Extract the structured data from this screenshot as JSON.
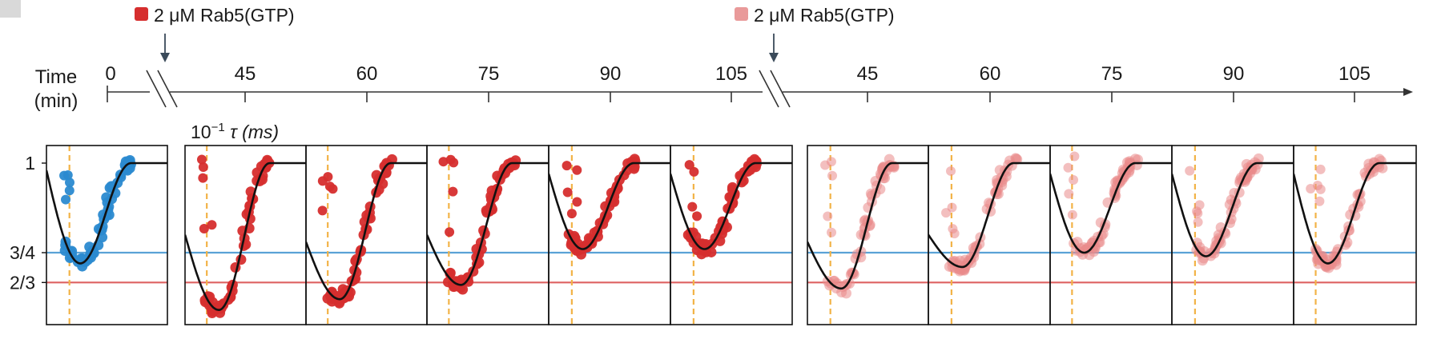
{
  "annotations": {
    "left": {
      "text": "2 μM Rab5(GTP)",
      "color": "#d62e2e"
    },
    "right": {
      "text": "2 μM Rab5(GTP)",
      "color": "#e99a9a"
    }
  },
  "timeline": {
    "label_line1": "Time",
    "label_line2": "(min)",
    "ticks": [
      "0",
      "45",
      "60",
      "75",
      "90",
      "105",
      "45",
      "60",
      "75",
      "90",
      "105"
    ]
  },
  "panel_axis_label": "10",
  "panel_axis_label_sup": "−1",
  "panel_axis_label_rest": "τ (ms)",
  "y_ticks": [
    "1",
    "3/4",
    "2/3"
  ],
  "colors": {
    "control": "#2b8ad0",
    "rab5": "#d62e2e",
    "rab5_light": "#e98a8a",
    "hline_blue": "#5aa2d6",
    "hline_red": "#de6262",
    "dashed": "#f2b347",
    "fit": "#111111"
  },
  "chart_data": {
    "type": "scatter",
    "x_axis": "10^-1 τ (ms)",
    "y_levels": {
      "one": 1,
      "three_quarters": 0.75,
      "two_thirds": 0.6667
    },
    "ylim": [
      0.55,
      1.05
    ],
    "panels": [
      {
        "group": "control",
        "time_min": "0",
        "minimum": 0.72,
        "color": "control"
      },
      {
        "group": "rab5",
        "time_min": "45",
        "minimum": 0.59,
        "color": "rab5"
      },
      {
        "group": "rab5",
        "time_min": "60",
        "minimum": 0.62,
        "color": "rab5"
      },
      {
        "group": "rab5",
        "time_min": "75",
        "minimum": 0.66,
        "color": "rab5"
      },
      {
        "group": "rab5",
        "time_min": "90",
        "minimum": 0.76,
        "color": "rab5"
      },
      {
        "group": "rab5",
        "time_min": "105",
        "minimum": 0.76,
        "color": "rab5"
      },
      {
        "group": "rab5_second",
        "time_min": "45",
        "minimum": 0.65,
        "color": "rab5_light"
      },
      {
        "group": "rab5_second",
        "time_min": "60",
        "minimum": 0.71,
        "color": "rab5_light"
      },
      {
        "group": "rab5_second",
        "time_min": "75",
        "minimum": 0.75,
        "color": "rab5_light"
      },
      {
        "group": "rab5_second",
        "time_min": "90",
        "minimum": 0.74,
        "color": "rab5_light"
      },
      {
        "group": "rab5_second",
        "time_min": "105",
        "minimum": 0.72,
        "color": "rab5_light"
      }
    ]
  }
}
